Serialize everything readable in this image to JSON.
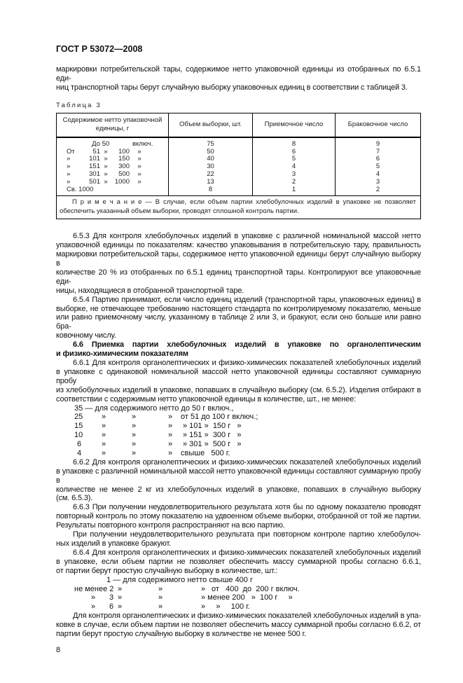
{
  "header": {
    "doc_code": "ГОСТ Р 53072—2008"
  },
  "intro": [
    "маркировки потребительской тары, содержимое нетто упаковочной единицы из отобранных по 6.5.1 еди-",
    "ниц транспортной тары берут случайную выборку упаковочных единиц в соответствии с таблицей 3."
  ],
  "table": {
    "caption": "Таблица 3",
    "columns": [
      "Содержимое нетто упаковочной единицы, г",
      "Объем выборки, шт.",
      "Приемочное число",
      "Браковочное число"
    ],
    "rows": [
      {
        "range": [
          "",
          "До",
          "50",
          "",
          "включ."
        ],
        "sample": "75",
        "accept": "8",
        "reject": "9"
      },
      {
        "range": [
          "От",
          "51",
          "»",
          "100",
          "»"
        ],
        "sample": "50",
        "accept": "6",
        "reject": "7"
      },
      {
        "range": [
          "»",
          "101",
          "»",
          "150",
          "»"
        ],
        "sample": "40",
        "accept": "5",
        "reject": "6"
      },
      {
        "range": [
          "»",
          "151",
          "»",
          "300",
          "»"
        ],
        "sample": "30",
        "accept": "4",
        "reject": "5"
      },
      {
        "range": [
          "»",
          "301",
          "»",
          "500",
          "»"
        ],
        "sample": "22",
        "accept": "3",
        "reject": "4"
      },
      {
        "range": [
          "»",
          "501",
          "»",
          "1000",
          "»"
        ],
        "sample": "13",
        "accept": "2",
        "reject": "3"
      },
      {
        "range": [
          "Св. 1000",
          "",
          "",
          "",
          ""
        ],
        "sample": "8",
        "accept": "1",
        "reject": "2"
      }
    ],
    "note": "П р и м е ч а н и е — В случае, если объем партии хлебобулочных изделий в упаковке не позволяет обеспечить указанный объем выборки, проводят сплошной контроль партии."
  },
  "body": [
    {
      "type": "p",
      "lines": [
        "6.5.3 Для контроля хлебобулочных изделий в упаковке с различной номинальной массой нетто",
        "упаковочной единицы по показателям: качество упаковывания в потребительскую тару, правильность",
        "маркировки потребительской тары, содержимое нетто упаковочной единицы берут случайную выборку в",
        "количестве 20 % из отобранных по 6.5.1 единиц транспортной тары. Контролируют все упаковочные еди-",
        "ницы, находящиеся в отобранной транспортной таре."
      ]
    },
    {
      "type": "p",
      "lines": [
        "6.5.4 Партию принимают, если число единиц изделий (транспортной тары, упаковочных единиц) в",
        "выборке, не отвечающее требованию настоящего стандарта по контролируемому показателю, меньше",
        "или равно приемочному числу, указанному в таблице 2 или 3, и бракуют, если оно больше или равно бра-",
        "ковочному числу."
      ]
    },
    {
      "type": "h",
      "lines": [
        "6.6 Приемка партии хлебобулочных изделий в упаковке по органолептическим",
        "и физико-химическим показателям"
      ]
    },
    {
      "type": "p",
      "lines": [
        "6.6.1 Для контроля органолептических и физико-химических показателей хлебобулочных изделий",
        "в упаковке с одинаковой номинальной массой нетто упаковочной единицы составляют суммарную пробу",
        "из хлебобулочных изделий в упаковке, попавших в случайную выборку (см. 6.5.2). Изделия отбирают в",
        "соответствии с содержимым нетто упаковочной единицы в количестве, шт., не менее:"
      ]
    },
    {
      "type": "list",
      "rows": [
        [
          [
            "35 — для содержимого нетто до 50 г включ.,",
            106
          ]
        ],
        [
          [
            "25",
            106
          ],
          [
            "»",
            145
          ],
          [
            "»",
            188
          ],
          [
            "»",
            240
          ],
          [
            "от 51 до 100 г включ.;",
            258
          ]
        ],
        [
          [
            "15",
            106
          ],
          [
            "»",
            145
          ],
          [
            "»",
            188
          ],
          [
            "»",
            240
          ],
          [
            "» 101 »  150 г   »",
            261
          ]
        ],
        [
          [
            "10",
            106
          ],
          [
            "»",
            145
          ],
          [
            "»",
            188
          ],
          [
            "»",
            240
          ],
          [
            "» 151 »  300 г   »",
            261
          ]
        ],
        [
          [
            "6",
            110
          ],
          [
            "»",
            145
          ],
          [
            "»",
            188
          ],
          [
            "»",
            240
          ],
          [
            "» 301 »  500 г   »",
            261
          ]
        ],
        [
          [
            "4",
            110
          ],
          [
            "»",
            145
          ],
          [
            "»",
            188
          ],
          [
            "»",
            240
          ],
          [
            "свыше   500 г.",
            258
          ]
        ]
      ]
    },
    {
      "type": "p",
      "lines": [
        "6.6.2 Для контроля органолептических и физико-химических показателей хлебобулочных изделий",
        "в упаковке с различной номинальной массой нетто упаковочной единицы составляют суммарную пробу в",
        "количестве не менее 2 кг из хлебобулочных изделий в упаковке, попавших в случайную выборку",
        "(см. 6.5.3)."
      ]
    },
    {
      "type": "p",
      "lines": [
        "6.6.3 При получении неудовлетворительного результата хотя бы по одному показателю проводят",
        "повторный контроль по этому показателю на удвоенном объеме выборки, отобранной от той же партии.",
        "Результаты повторного контроля распространяют на всю партию."
      ]
    },
    {
      "type": "p",
      "lines": [
        "При получении неудовлетворительного результата при повторном контроле партию хлебобулоч-",
        "ных изделий в упаковке бракуют."
      ]
    },
    {
      "type": "p",
      "lines": [
        "6.6.4 Для контроля органолептических и физико-химических показателей хлебобулочных изделий",
        "в упаковке, если объем партии не позволяет обеспечить массу суммарной пробы согласно 6.6.1,",
        "от партии берут простую случайную выборку в количестве, шт.:"
      ]
    },
    {
      "type": "list",
      "rows": [
        [
          [
            "1 — для содержимого нетто свыше 400 г",
            152
          ]
        ],
        [
          [
            "не менее 2",
            106
          ],
          [
            "»",
            168
          ],
          [
            "»",
            226
          ],
          [
            "»",
            287
          ],
          [
            "от   400  до  200 г включ.",
            302
          ]
        ],
        [
          [
            "»",
            130
          ],
          [
            "3",
            156
          ],
          [
            "»",
            168
          ],
          [
            "»",
            226
          ],
          [
            "» менее 200   »  100 г     »",
            287
          ]
        ],
        [
          [
            "»",
            130
          ],
          [
            "6",
            156
          ],
          [
            "»",
            168
          ],
          [
            "»",
            226
          ],
          [
            "»     »     100 г.",
            287
          ]
        ]
      ]
    },
    {
      "type": "p",
      "lines": [
        "Для контроля органолептических и физико-химических показателей хлебобулочных изделий в упа-",
        "ковке в случае, если объем партии не позволяет обеспечить массу суммарной пробы согласно 6.6.2, от",
        "партии берут простую случайную выборку в количестве не менее 500 г."
      ]
    }
  ],
  "page_number": "8"
}
